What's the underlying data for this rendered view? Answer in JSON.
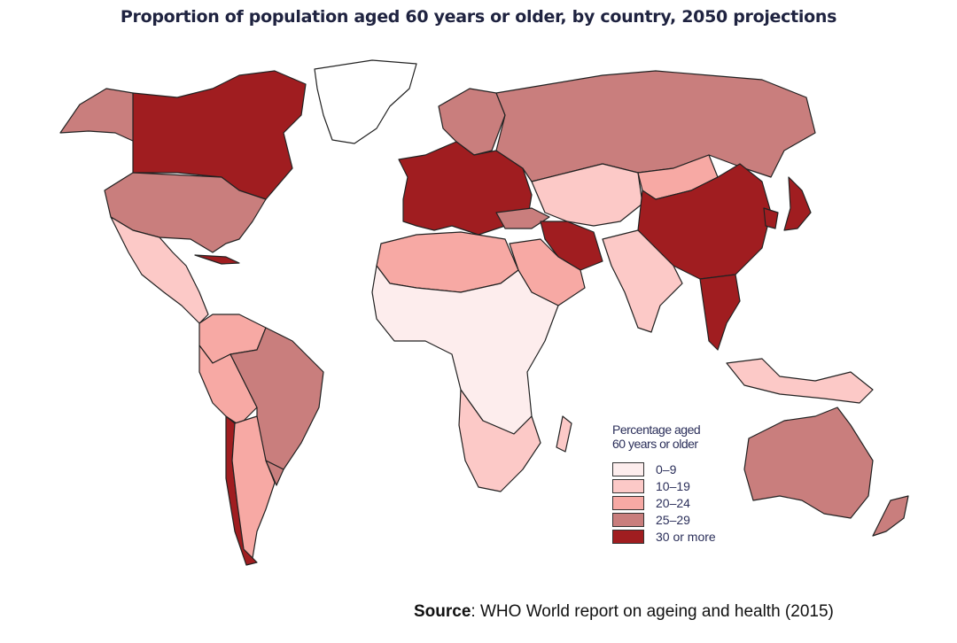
{
  "title": "Proportion of population aged 60 years or older, by country, 2050 projections",
  "legend": {
    "title_line1": "Percentage aged",
    "title_line2": "60 years or older",
    "classes": [
      {
        "label": "0–9",
        "color": "#fdeded"
      },
      {
        "label": "10–19",
        "color": "#fcc9c7"
      },
      {
        "label": "20–24",
        "color": "#f7a9a4"
      },
      {
        "label": "25–29",
        "color": "#c97e7d"
      },
      {
        "label": "30 or more",
        "color": "#a01d20"
      }
    ],
    "no_data_color": "#ffffff"
  },
  "regions": [
    {
      "name": "greenland",
      "class": -1
    },
    {
      "name": "canada",
      "class": 4
    },
    {
      "name": "alaska",
      "class": 3
    },
    {
      "name": "usa",
      "class": 3
    },
    {
      "name": "mexico-central-america",
      "class": 1
    },
    {
      "name": "cuba-caribbean",
      "class": 4
    },
    {
      "name": "colombia-venezuela",
      "class": 2
    },
    {
      "name": "brazil",
      "class": 3
    },
    {
      "name": "peru-bolivia",
      "class": 2
    },
    {
      "name": "chile",
      "class": 4
    },
    {
      "name": "argentina",
      "class": 2
    },
    {
      "name": "uruguay",
      "class": 3
    },
    {
      "name": "europe",
      "class": 4
    },
    {
      "name": "scandinavia",
      "class": 3
    },
    {
      "name": "russia",
      "class": 3
    },
    {
      "name": "turkey",
      "class": 3
    },
    {
      "name": "north-africa",
      "class": 2
    },
    {
      "name": "sub-saharan-africa",
      "class": 0
    },
    {
      "name": "southern-africa",
      "class": 1
    },
    {
      "name": "madagascar",
      "class": 1
    },
    {
      "name": "arabia",
      "class": 2
    },
    {
      "name": "iran",
      "class": 4
    },
    {
      "name": "central-asia",
      "class": 1
    },
    {
      "name": "india",
      "class": 1
    },
    {
      "name": "mongolia",
      "class": 2
    },
    {
      "name": "china",
      "class": 4
    },
    {
      "name": "korea",
      "class": 4
    },
    {
      "name": "japan",
      "class": 4
    },
    {
      "name": "thailand-vietnam",
      "class": 4
    },
    {
      "name": "indonesia",
      "class": 1
    },
    {
      "name": "australia",
      "class": 3
    },
    {
      "name": "new-zealand",
      "class": 3
    }
  ],
  "source": {
    "label": "Source",
    "text": ": WHO World report on ageing and health (2015)"
  }
}
